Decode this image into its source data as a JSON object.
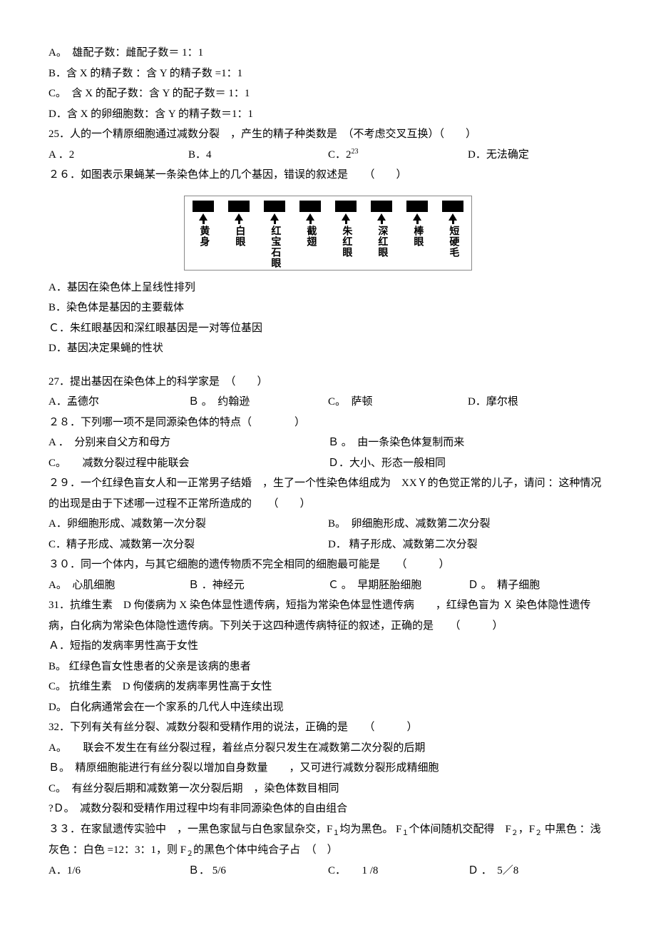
{
  "q24": {
    "optA": "A。　雄配子数：雌配子数＝ 1：1",
    "optB": "B．含 X 的精子数 ：含 Y 的精子数 =1：1",
    "optC": "C。　含 X 的配子数：含 Y 的配子数＝ 1：1",
    "optD": "D．含 X 的卵细胞数：含 Y 的精子数＝1：1"
  },
  "q25": {
    "stem": "25．人的一个精原细胞通过减数分裂　，产生的精子种类数是　（不考虑交叉互换）（　　）",
    "optA": "A ．2",
    "optB": "B．4",
    "optC_prefix": "C．2",
    "optC_sup": "23",
    "optD": "D．无法确定"
  },
  "q26": {
    "stem": "２６．如图表示果蝇某一条染色体上的几个基因，错误的叙述是　　（　　）",
    "genes": [
      "黄身",
      "白眼",
      "红宝石眼",
      "截翅",
      "朱红眼",
      "深红眼",
      "棒眼",
      "短硬毛"
    ],
    "optA": "A．基因在染色体上呈线性排列",
    "optB": "B．染色体是基因的主要载体",
    "optC": "Ｃ．朱红眼基因和深红眼基因是一对等位基因",
    "optD": "D．基因决定果蝇的性状"
  },
  "q27": {
    "stem": "27．提出基因在染色体上的科学家是　（　　）",
    "optA": "A．孟德尔",
    "optB": "Ｂ 。　约翰逊",
    "optC": "C。　萨顿",
    "optD": "D．摩尔根"
  },
  "q28": {
    "stem": "２８．下列哪一项不是同源染色体的特点（　　　　）",
    "optA": "A ．　分别来自父方和母方",
    "optB": "Ｂ 。　由一条染色体复制而来",
    "optC": "C。　　减数分裂过程中能联会",
    "optD": "Ｄ．大小、形态一般相同"
  },
  "q29": {
    "stem": "２９．一个红绿色盲女人和一正常男子结婚　，生了一个性染色体组成为　XXＹ的色觉正常的儿子，请问 ：这种情况的出现是由于下述哪一过程不正常所造成的　　（　　）",
    "optA": "A．卵细胞形成、减数第一次分裂",
    "optB": "B。　卵细胞形成、减数第二次分裂",
    "optC": "C．精子形成、减数第一次分裂",
    "optD": "D．  精子形成、减数第二次分裂"
  },
  "q30": {
    "stem": "３０．同一个体内，与其它细胞的遗传物质不完全相同的细胞最可能是　　（　　　）",
    "optA": "A。　心肌细胞",
    "optB": "Ｂ ．神经元",
    "optC": "Ｃ 。　早期胚胎细胞",
    "optD": "Ｄ 。　精子细胞"
  },
  "q31": {
    "stem": "31．抗维生素　D 佝偻病为 X 染色体显性遗传病，短指为常染色体显性遗传病　　，红绿色盲为 Ｘ 染色体隐性遗传病，白化病为常染色体隐性遗传病。下列关于这四种遗传病特征的叙述，正确的是　　（　　　）",
    "optA": "Ａ．短指的发病率男性高于女性",
    "optB": "B。 红绿色盲女性患者的父亲是该病的患者",
    "optC": "C。 抗维生素　D 佝偻病的发病率男性高于女性",
    "optD": "D。 白化病通常会在一个家系的几代人中连续出现"
  },
  "q32": {
    "stem": "32．下列有关有丝分裂、减数分裂和受精作用的说法，正确的是　　（　　　）",
    "optA": "A。　　联会不发生在有丝分裂过程，着丝点分裂只发生在减数第二次分裂的后期",
    "optB": "Ｂ。　精原细胞能进行有丝分裂以增加自身数量　　，又可进行减数分裂形成精细胞",
    "optC": "C。　有丝分裂后期和减数第一次分裂后期　，染色体数目相同",
    "optD": "?Ｄ。　减数分裂和受精作用过程中均有非同源染色体的自由组合"
  },
  "q33": {
    "stem_p1": "３３．在家鼠遗传实验中　，一黑色家鼠与白色家鼠杂交，F",
    "stem_sub1": "１",
    "stem_p2": "均为黑色。 F",
    "stem_sub2": "１",
    "stem_p3": "个体间随机交配得　F",
    "stem_sub3": "２",
    "stem_p4": "，F",
    "stem_sub4": "２",
    "stem_p5": " 中黑色 ：浅灰色 ：白色 =12：3：1，则 F",
    "stem_sub5": "２",
    "stem_p6": "的黑色个体中纯合子占　（　）",
    "optA": "A．1/6",
    "optB": "Ｂ． 5/6",
    "optC": "C．　　1 /8",
    "optD": "Ｄ ．　5／8"
  }
}
